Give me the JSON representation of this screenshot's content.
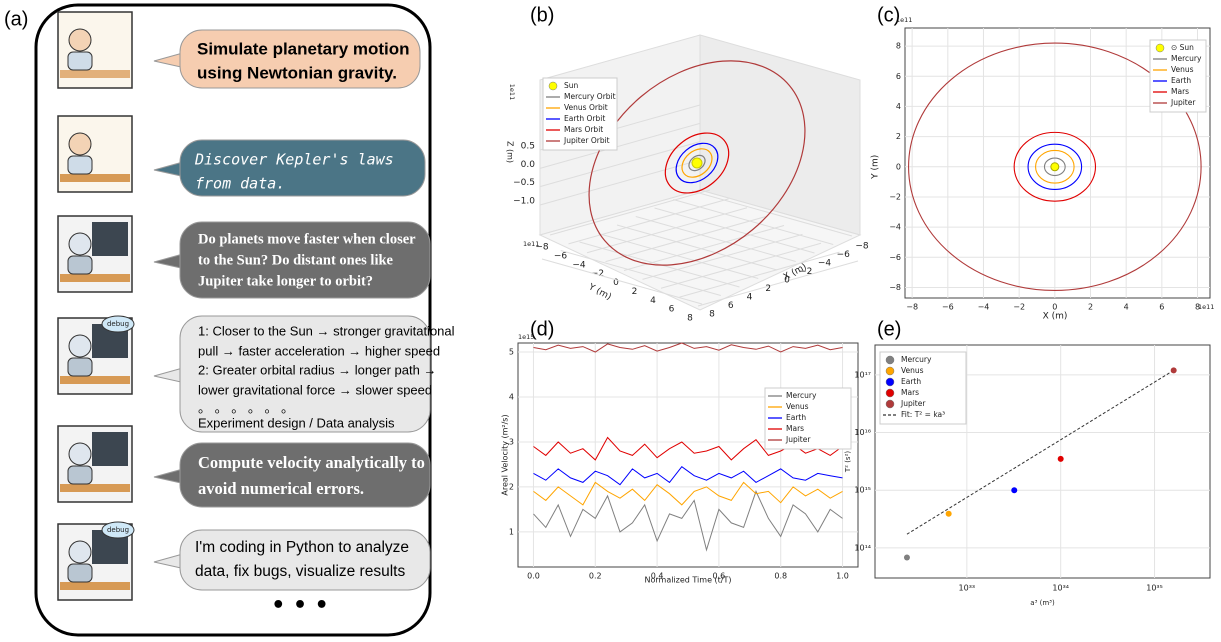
{
  "panel_a": {
    "label": "(a)",
    "messages": [
      [
        "Simulate planetary motion",
        "using Newtonian gravity."
      ],
      [
        "Discover Kepler's laws",
        "from data."
      ],
      [
        "Do planets move faster when closer",
        "to the Sun? Do distant ones like",
        "Jupiter take longer to orbit?"
      ],
      [
        "1: Closer to the Sun → stronger gravitational",
        "pull → faster acceleration → higher speed",
        "2: Greater orbital radius → longer path →",
        "lower gravitational force → slower speed",
        "。 。 。 。 。 。",
        "Experiment design / Data analysis"
      ],
      [
        "Compute velocity analytically to",
        "avoid numerical errors."
      ],
      [
        "I'm coding in Python to analyze",
        "data, fix bugs, visualize results"
      ]
    ],
    "debug_tags": [
      "debug",
      "debug"
    ],
    "ellipsis": "• • •"
  },
  "chart_data": [
    {
      "type": "orbit3d",
      "label": "(b)",
      "xlabel": "X (m)",
      "ylabel": "Y (m)",
      "zlabel": "Z (m)",
      "offset": "1e11",
      "sun": {
        "name": "Sun",
        "color": "#ffff00"
      },
      "series": [
        {
          "name": "Mercury Orbit",
          "color": "#808080",
          "radius": 0.58
        },
        {
          "name": "Venus Orbit",
          "color": "#ffa500",
          "radius": 1.08
        },
        {
          "name": "Earth Orbit",
          "color": "#0000ff",
          "radius": 1.5
        },
        {
          "name": "Mars Orbit",
          "color": "#e00000",
          "radius": 2.28
        },
        {
          "name": "Jupiter Orbit",
          "color": "#b03a3a",
          "radius": 7.78
        }
      ],
      "xticks": [
        {
          "value": 8,
          "label": "8"
        },
        {
          "value": 6,
          "label": "6"
        },
        {
          "value": 4,
          "label": "4"
        },
        {
          "value": 2,
          "label": "2"
        },
        {
          "value": 0,
          "label": "0"
        },
        {
          "value": -2,
          "label": "−2"
        },
        {
          "value": -4,
          "label": "−4"
        },
        {
          "value": -6,
          "label": "−6"
        },
        {
          "value": -8,
          "label": "−8"
        }
      ],
      "yticks": [
        {
          "value": -8,
          "label": "−8"
        },
        {
          "value": -6,
          "label": "−6"
        },
        {
          "value": -4,
          "label": "−4"
        },
        {
          "value": -2,
          "label": "−2"
        },
        {
          "value": 0,
          "label": "0"
        },
        {
          "value": 2,
          "label": "2"
        },
        {
          "value": 4,
          "label": "4"
        },
        {
          "value": 6,
          "label": "6"
        },
        {
          "value": 8,
          "label": "8"
        }
      ],
      "zticks": [
        {
          "value": -1.0,
          "label": "−1.0"
        },
        {
          "value": -0.5,
          "label": "−0.5"
        },
        {
          "value": 0.0,
          "label": "0.0"
        },
        {
          "value": 0.5,
          "label": "0.5"
        }
      ]
    },
    {
      "type": "orbit2d",
      "label": "(c)",
      "xlabel": "X (m)",
      "ylabel": "Y (m)",
      "offset": "1e11",
      "grid": true,
      "sun": {
        "name": "⊙ Sun",
        "color": "#ffff00"
      },
      "series": [
        {
          "name": "Mercury",
          "color": "#808080",
          "radius": 0.58
        },
        {
          "name": "Venus",
          "color": "#ffa500",
          "radius": 1.08
        },
        {
          "name": "Earth",
          "color": "#0000ff",
          "radius": 1.5
        },
        {
          "name": "Mars",
          "color": "#e00000",
          "radius": 2.28
        },
        {
          "name": "Jupiter",
          "color": "#b03a3a",
          "radius": 8.2
        }
      ],
      "xlim": [
        -8.4,
        8.7
      ],
      "ylim": [
        -8.7,
        9.2
      ],
      "xticks": [
        {
          "value": -8,
          "label": "−8"
        },
        {
          "value": -6,
          "label": "−6"
        },
        {
          "value": -4,
          "label": "−4"
        },
        {
          "value": -2,
          "label": "−2"
        },
        0,
        2,
        4,
        6,
        8
      ],
      "yticks": [
        {
          "value": -8,
          "label": "−8"
        },
        {
          "value": -6,
          "label": "−6"
        },
        {
          "value": -4,
          "label": "−4"
        },
        {
          "value": -2,
          "label": "−2"
        },
        0,
        2,
        4,
        6,
        8
      ]
    },
    {
      "type": "line",
      "label": "(d)",
      "xlabel": "Normalized Time (t/T)",
      "ylabel": "Areal Velocity (m²/s)",
      "offset": "1e15",
      "grid": true,
      "x": [
        0,
        0.04,
        0.08,
        0.12,
        0.16,
        0.2,
        0.24,
        0.28,
        0.32,
        0.36,
        0.4,
        0.44,
        0.48,
        0.52,
        0.56,
        0.6,
        0.64,
        0.68,
        0.72,
        0.76,
        0.8,
        0.84,
        0.88,
        0.92,
        0.96,
        1.0
      ],
      "series": [
        {
          "name": "Mercury",
          "color": "#808080",
          "values": [
            1.4,
            1.1,
            1.6,
            0.9,
            1.5,
            1.3,
            1.8,
            1.0,
            1.2,
            1.6,
            0.8,
            1.4,
            1.3,
            1.7,
            0.6,
            1.5,
            1.2,
            1.1,
            1.9,
            1.3,
            0.9,
            1.6,
            1.4,
            1.0,
            1.5,
            1.3
          ]
        },
        {
          "name": "Venus",
          "color": "#ffa500",
          "values": [
            1.9,
            1.7,
            2.0,
            1.8,
            1.6,
            2.1,
            1.9,
            1.75,
            1.95,
            1.7,
            2.05,
            1.85,
            1.6,
            1.9,
            2.0,
            1.8,
            1.7,
            2.1,
            1.85,
            1.9,
            1.65,
            2.0,
            1.8,
            1.95,
            1.75,
            1.9
          ]
        },
        {
          "name": "Earth",
          "color": "#0000ff",
          "values": [
            2.3,
            2.15,
            2.4,
            2.2,
            2.1,
            2.35,
            2.25,
            2.05,
            2.4,
            2.2,
            2.3,
            2.1,
            2.45,
            2.25,
            2.15,
            2.3,
            2.2,
            2.35,
            2.1,
            2.25,
            2.4,
            2.2,
            2.15,
            2.3,
            2.25,
            2.2
          ]
        },
        {
          "name": "Mars",
          "color": "#e00000",
          "values": [
            2.9,
            2.7,
            3.0,
            2.75,
            2.85,
            2.6,
            3.1,
            2.8,
            2.7,
            2.95,
            2.65,
            2.85,
            3.0,
            2.75,
            2.8,
            2.9,
            2.6,
            2.85,
            3.05,
            2.7,
            2.8,
            2.95,
            2.75,
            2.85,
            2.7,
            2.9
          ]
        },
        {
          "name": "Jupiter",
          "color": "#b03a3a",
          "values": [
            5.1,
            5.05,
            5.15,
            5.08,
            5.12,
            5.0,
            5.18,
            5.1,
            5.06,
            5.14,
            5.02,
            5.1,
            5.2,
            5.08,
            5.12,
            5.04,
            5.16,
            5.1,
            5.06,
            5.13,
            5.0,
            5.12,
            5.08,
            5.15,
            5.05,
            5.1
          ]
        }
      ],
      "xlim": [
        -0.05,
        1.05
      ],
      "ylim": [
        0.22,
        5.2
      ],
      "xticks": [
        {
          "value": 0,
          "label": "0.0"
        },
        0.2,
        0.4,
        0.6,
        0.8,
        {
          "value": 1,
          "label": "1.0"
        }
      ],
      "yticks": [
        1,
        2,
        3,
        4,
        5
      ]
    },
    {
      "type": "scatter",
      "label": "(e)",
      "xlabel": "a³ (m³)",
      "ylabel": "T² (s²)",
      "log": true,
      "grid": true,
      "series": [
        {
          "name": "Mercury",
          "color": "#808080",
          "x": [
            2.3e+32
          ],
          "values": [
            68000000000000.0
          ]
        },
        {
          "name": "Venus",
          "color": "#ffa500",
          "x": [
            6.4e+32
          ],
          "values": [
            390000000000000.0
          ]
        },
        {
          "name": "Earth",
          "color": "#0000ff",
          "x": [
            3.2e+33
          ],
          "values": [
            1000000000000000.0
          ]
        },
        {
          "name": "Mars",
          "color": "#e00000",
          "x": [
            1e+34
          ],
          "values": [
            3500000000000000.0
          ]
        },
        {
          "name": "Jupiter",
          "color": "#b03a3a",
          "x": [
            1.6e+35
          ],
          "values": [
            1.2e+17
          ]
        }
      ],
      "fit": {
        "name": "Fit: T² = ka³",
        "color": "#333333"
      },
      "xlim": [
        1.05e+32,
        3.9e+35
      ],
      "ylim": [
        30000000000000.0,
        3.3e+17
      ],
      "xticks": [
        {
          "value": 1e+33,
          "label": "10³³"
        },
        {
          "value": 1e+34,
          "label": "10³⁴"
        },
        {
          "value": 1e+35,
          "label": "10³⁵"
        }
      ],
      "yticks": [
        {
          "value": 100000000000000.0,
          "label": "10¹⁴"
        },
        {
          "value": 1000000000000000.0,
          "label": "10¹⁵"
        },
        {
          "value": 1e+16,
          "label": "10¹⁶"
        },
        {
          "value": 1e+17,
          "label": "10¹⁷"
        }
      ]
    }
  ]
}
